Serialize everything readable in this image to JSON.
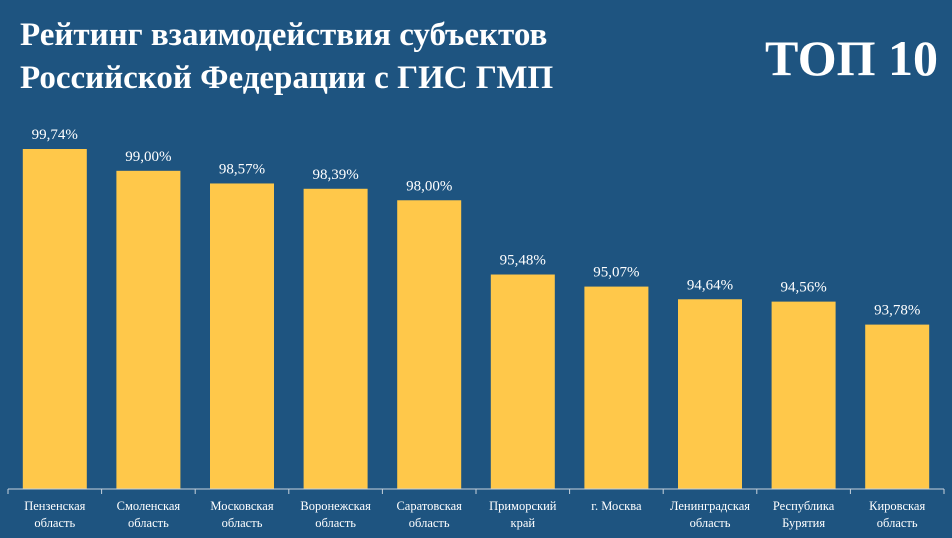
{
  "header": {
    "title_line1": "Рейтинг взаимодействия субъектов",
    "title_line2": "Российской Федерации с ГИС ГМП",
    "badge": "ТОП 10"
  },
  "colors": {
    "background": "#1e5480",
    "bar": "#ffc84a",
    "text": "#ffffff"
  },
  "chart_data": {
    "type": "bar",
    "categories": [
      [
        "Пензенская",
        "область"
      ],
      [
        "Смоленская",
        "область"
      ],
      [
        "Московская",
        "область"
      ],
      [
        "Воронежская",
        "область"
      ],
      [
        "Саратовская",
        "область"
      ],
      [
        "Приморский",
        "край"
      ],
      [
        "г. Москва"
      ],
      [
        "Ленинградская",
        "область"
      ],
      [
        "Республика",
        "Бурятия"
      ],
      [
        "Кировская",
        "область"
      ]
    ],
    "values": [
      99.74,
      99.0,
      98.57,
      98.39,
      98.0,
      95.48,
      95.07,
      94.64,
      94.56,
      93.78
    ],
    "value_labels": [
      "99,74%",
      "99,00%",
      "98,57%",
      "98,39%",
      "98,00%",
      "95,48%",
      "95,07%",
      "94,64%",
      "94,56%",
      "93,78%"
    ],
    "ylim": [
      88.2,
      99.74
    ],
    "grid": false,
    "legend": "none",
    "title": "Рейтинг взаимодействия субъектов Российской Федерации с ГИС ГМП"
  }
}
